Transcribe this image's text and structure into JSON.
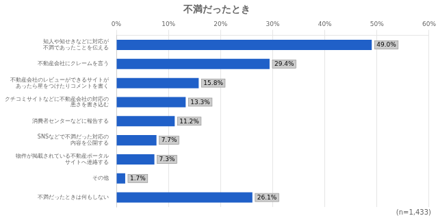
{
  "chart_data": {
    "type": "bar",
    "orientation": "horizontal",
    "title": "不満だったとき",
    "categories": [
      "知人や知せきなどに対応が\n不満であったことを伝える",
      "不動産会社にクレームを言う",
      "不動産会社のレビューができるサイトが\nあったら星をつけたりコメントを書く",
      "クチコミサイトなどに不動産会社の対応の\n悪さを書き込む",
      "消費者センターなどに報告する",
      "SNSなどで不満だった対応の\n内容を公開する",
      "物件が掲載されている不動産ポータル\nサイトへ連絡する",
      "その他",
      "不満だったときは何もしない"
    ],
    "values": [
      49.0,
      29.4,
      15.8,
      13.3,
      11.2,
      7.7,
      7.3,
      1.7,
      26.1
    ],
    "value_labels": [
      "49.0%",
      "29.4%",
      "15.8%",
      "13.3%",
      "11.2%",
      "7.7%",
      "7.3%",
      "1.7%",
      "26.1%"
    ],
    "data_labels": true,
    "color": "#2060c8",
    "xlim": [
      0,
      60
    ],
    "xticks": [
      {
        "value": 0,
        "label": "0%"
      },
      {
        "value": 10,
        "label": "10%"
      },
      {
        "value": 20,
        "label": "20%"
      },
      {
        "value": 30,
        "label": "30%"
      },
      {
        "value": 40,
        "label": "40%"
      },
      {
        "value": 50,
        "label": "50%"
      },
      {
        "value": 60,
        "label": "60%"
      }
    ],
    "grid": true,
    "annotations": [
      "(n=1,433)"
    ]
  }
}
